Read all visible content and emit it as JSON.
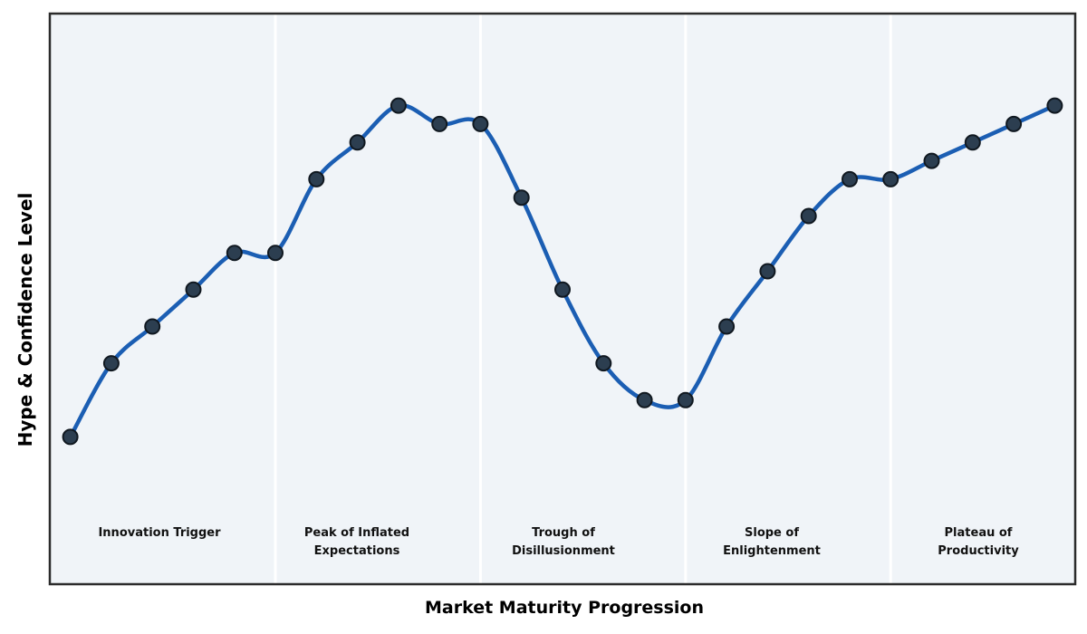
{
  "chart_data": {
    "type": "line",
    "title": "",
    "xlabel": "Market Maturity Progression",
    "ylabel": "Hype & Confidence Level",
    "x": [
      0,
      1,
      2,
      3,
      4,
      5,
      6,
      7,
      8,
      9,
      10,
      11,
      12,
      13,
      14,
      15,
      16,
      17,
      18,
      19,
      20,
      21,
      22,
      23,
      24
    ],
    "values": [
      5,
      25,
      35,
      45,
      55,
      55,
      75,
      85,
      95,
      90,
      90,
      70,
      45,
      25,
      15,
      15,
      35,
      50,
      65,
      75,
      75,
      80,
      85,
      90,
      95
    ],
    "series_name": "Hype & Confidence Level",
    "xlim": [
      -0.5,
      24.5
    ],
    "ylim": [
      -35,
      120
    ],
    "grid": false,
    "legend": "none",
    "ticks": "none",
    "smooth": true,
    "marker": "circle",
    "phases": [
      {
        "label": "Innovation Trigger",
        "start": -0.5,
        "end": 5
      },
      {
        "label": "Peak of Inflated\nExpectations",
        "start": 5,
        "end": 10
      },
      {
        "label": "Trough of\nDisillusionment",
        "start": 10,
        "end": 15
      },
      {
        "label": "Slope of\nEnlightenment",
        "start": 15,
        "end": 20
      },
      {
        "label": "Plateau of\nProductivity",
        "start": 20,
        "end": 24.5
      }
    ],
    "colors": {
      "line": "#1b5eb3",
      "marker": "#2c3e50",
      "marker_edge": "#101820",
      "band": "#f0f4f8",
      "divider": "#ffffff",
      "border": "#2b2b2b",
      "phase_text": "#111111",
      "axis_text": "#000000",
      "figure_background": "#ffffff"
    }
  }
}
